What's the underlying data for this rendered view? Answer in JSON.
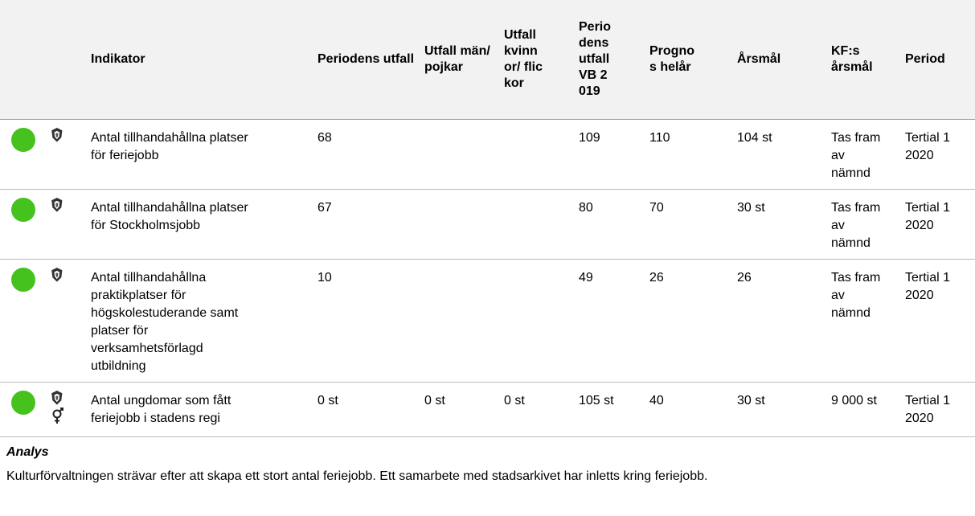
{
  "table": {
    "header": [
      "Indikator",
      "Periodens utfall",
      "Utfall män/ pojkar",
      "Utfall kvinnor/ flickor",
      "Periodens utfall VB 2019",
      "Prognos helår",
      "Årsmål",
      "KF:s årsmål",
      "Period"
    ],
    "rows": [
      {
        "gender": false,
        "cells": [
          "Antal tillhandahållna platser för feriejobb",
          "68",
          null,
          null,
          "109",
          "110",
          "104 st",
          "Tas fram av nämnd",
          "Tertial 1 2020"
        ]
      },
      {
        "gender": false,
        "cells": [
          "Antal tillhandahållna platser för Stockholmsjobb",
          "67",
          null,
          null,
          "80",
          "70",
          "30 st",
          "Tas fram av nämnd",
          "Tertial 1 2020"
        ]
      },
      {
        "gender": false,
        "cells": [
          "Antal tillhandahållna praktikplatser för högskolestuderande samt platser för verksamhetsförlagd utbildning",
          "10",
          null,
          null,
          "49",
          "26",
          "26",
          "Tas fram av nämnd",
          "Tertial 1 2020"
        ]
      },
      {
        "gender": true,
        "cells": [
          "Antal ungdomar som fått feriejobb i stadens regi",
          "0 st",
          "0 st",
          "0 st",
          "105 st",
          "40",
          "30 st",
          "9 000 st",
          "Tertial 1 2020"
        ]
      }
    ]
  },
  "analysis": {
    "title": "Analys",
    "text": "Kulturförvaltningen strävar efter att skapa ett stort antal feriejobb. Ett samarbete med stadsarkivet har inletts kring feriejobb."
  }
}
